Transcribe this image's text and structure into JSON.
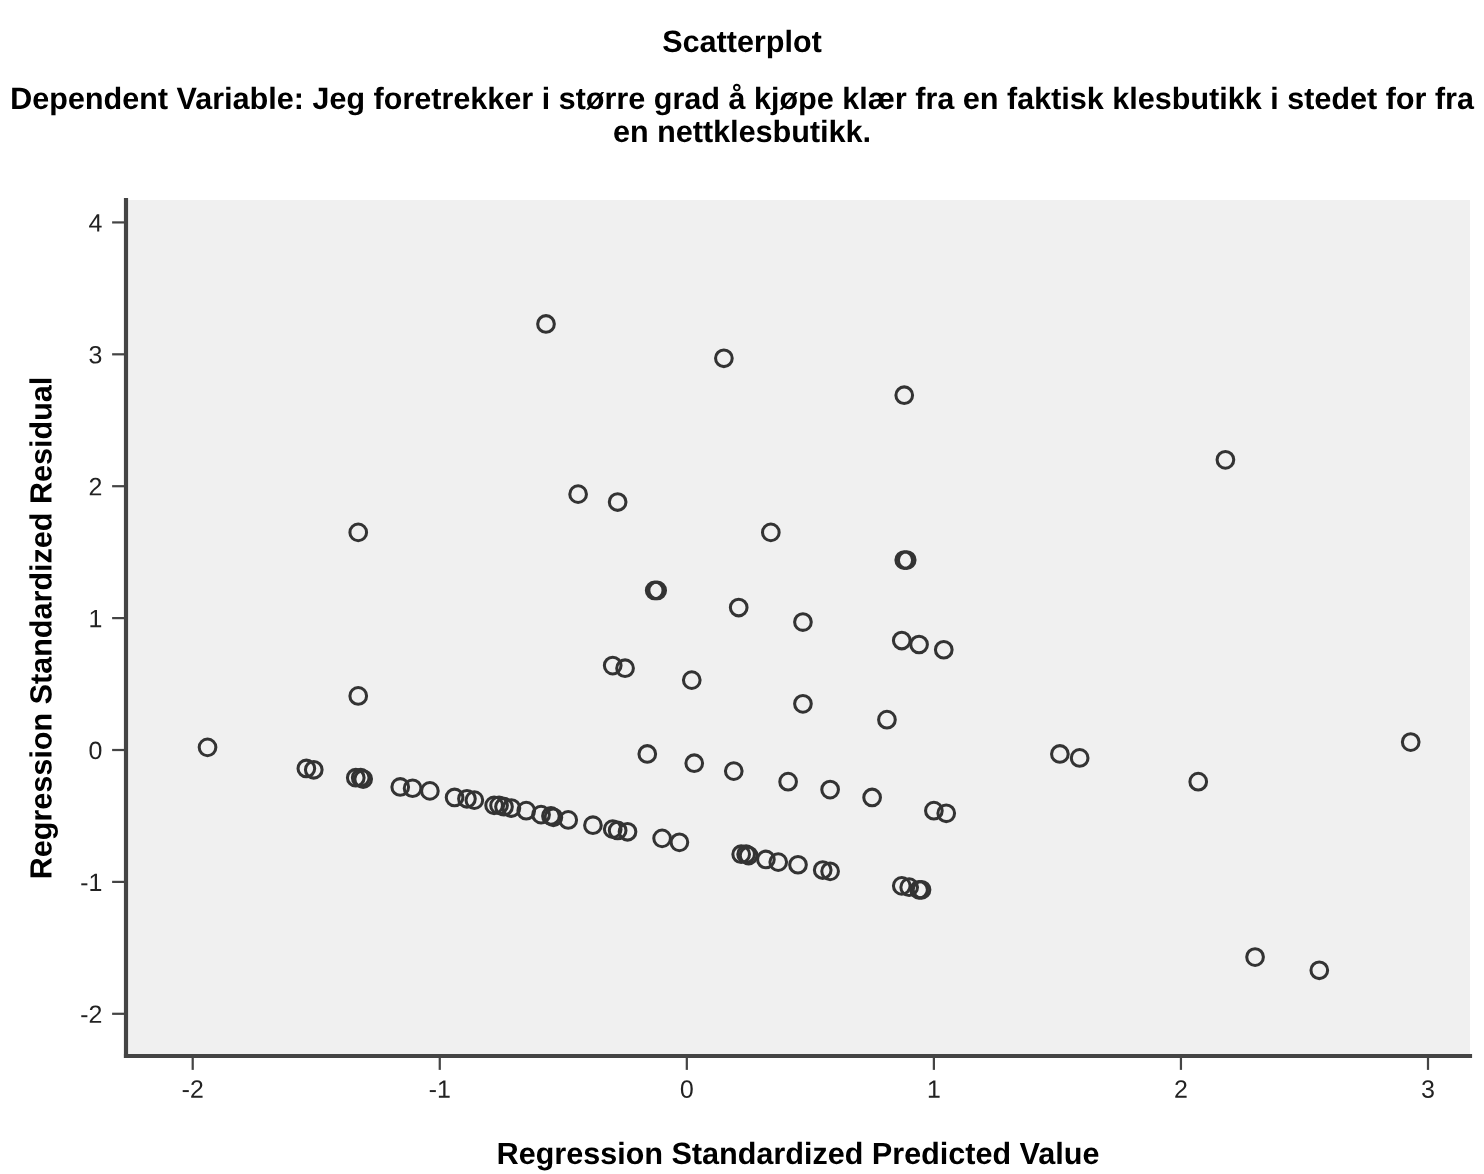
{
  "chart_data": {
    "type": "scatter",
    "title": "Scatterplot",
    "subtitle": "Dependent Variable: Jeg foretrekker i større grad å kjøpe klær fra en faktisk klesbutikk i stedet for fra en nettklesbutikk.",
    "xlabel": "Regression Standardized Predicted Value",
    "ylabel": "Regression Standardized Residual",
    "marker": "circle",
    "grid": false,
    "xlim": [
      -2.27,
      3.17
    ],
    "ylim": [
      -2.32,
      4.17
    ],
    "xticks": [
      -2,
      -1,
      0,
      1,
      2,
      3
    ],
    "yticks": [
      -2,
      -1,
      0,
      1,
      2,
      3,
      4
    ],
    "series": [
      {
        "color": "#333333",
        "x": [
          -0.57,
          0.15,
          0.88,
          2.18,
          -0.44,
          -0.28,
          -1.33,
          0.34,
          -0.13,
          -0.12,
          0.88,
          0.89,
          0.21,
          0.47,
          -0.3,
          -0.25,
          0.87,
          0.94,
          1.04,
          0.02,
          -1.33,
          0.47,
          0.81,
          2.93,
          -1.94,
          1.51,
          1.59,
          -0.16,
          0.03,
          0.19,
          0.41,
          0.58,
          0.75,
          1.0,
          1.05,
          2.07,
          -1.54,
          -1.51,
          -1.34,
          -1.32,
          -1.31,
          -1.16,
          -1.11,
          -1.04,
          -0.94,
          -0.89,
          -0.86,
          -0.78,
          -0.76,
          -0.74,
          -0.71,
          -0.65,
          -0.59,
          -0.55,
          -0.54,
          -0.48,
          -0.38,
          -0.3,
          -0.28,
          -0.24,
          -0.1,
          -0.03,
          0.22,
          0.24,
          0.25,
          0.32,
          0.37,
          0.45,
          0.55,
          0.58,
          0.87,
          0.9,
          0.94,
          0.95,
          2.3,
          2.56
        ],
        "values": [
          3.23,
          2.97,
          2.69,
          2.2,
          1.94,
          1.88,
          1.65,
          1.65,
          1.21,
          1.21,
          1.44,
          1.44,
          1.08,
          0.97,
          0.64,
          0.62,
          0.83,
          0.8,
          0.76,
          0.53,
          0.41,
          0.35,
          0.23,
          0.06,
          0.02,
          -0.03,
          -0.06,
          -0.03,
          -0.1,
          -0.16,
          -0.24,
          -0.3,
          -0.36,
          -0.46,
          -0.48,
          -0.24,
          -0.14,
          -0.15,
          -0.21,
          -0.21,
          -0.22,
          -0.28,
          -0.29,
          -0.31,
          -0.36,
          -0.37,
          -0.38,
          -0.42,
          -0.42,
          -0.43,
          -0.44,
          -0.46,
          -0.49,
          -0.5,
          -0.51,
          -0.53,
          -0.57,
          -0.6,
          -0.61,
          -0.62,
          -0.67,
          -0.7,
          -0.79,
          -0.79,
          -0.8,
          -0.83,
          -0.85,
          -0.87,
          -0.91,
          -0.92,
          -1.03,
          -1.04,
          -1.06,
          -1.06,
          -1.57,
          -1.67
        ]
      }
    ]
  }
}
